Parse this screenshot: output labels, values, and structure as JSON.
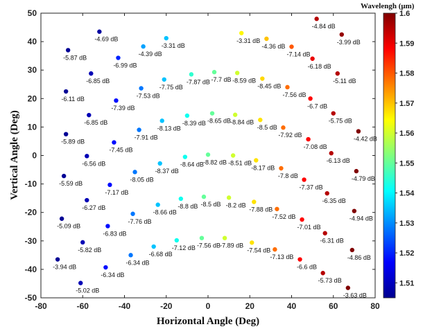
{
  "chart_data": {
    "type": "scatter",
    "xlabel": "Horizontal Angle (Deg)",
    "ylabel": "Vertical Angle (Deg)",
    "xlim": [
      -80,
      80
    ],
    "ylim": [
      -50,
      50
    ],
    "xticks": [
      "-80",
      "-60",
      "-40",
      "-20",
      "0",
      "20",
      "40",
      "60",
      "80"
    ],
    "yticks": [
      "50",
      "40",
      "30",
      "20",
      "10",
      "0",
      "-10",
      "-20",
      "-30",
      "-40",
      "-50"
    ],
    "grid": false,
    "colorbar": {
      "title": "Wavelengh (μm)",
      "range": [
        1.505,
        1.6
      ],
      "ticks": [
        "1.6",
        "1.59",
        "1.58",
        "1.57",
        "1.56",
        "1.55",
        "1.54",
        "1.53",
        "1.52",
        "1.51"
      ]
    },
    "points": [
      {
        "x": -52,
        "y": 43.5,
        "label": "-4.69 dB",
        "wl": 1.508
      },
      {
        "x": -20,
        "y": 41.2,
        "label": "-3.31 dB",
        "wl": 1.535
      },
      {
        "x": 16,
        "y": 43,
        "label": "-3.31 dB",
        "wl": 1.565
      },
      {
        "x": 52,
        "y": 48,
        "label": "-4.84 dB",
        "wl": 1.595
      },
      {
        "x": -67,
        "y": 37,
        "label": "-5.87 dB",
        "wl": 1.507
      },
      {
        "x": -31,
        "y": 38.3,
        "label": "-4.39 dB",
        "wl": 1.532
      },
      {
        "x": 28,
        "y": 41,
        "label": "-4.36 dB",
        "wl": 1.57
      },
      {
        "x": 64,
        "y": 42.5,
        "label": "-3.99 dB",
        "wl": 1.598
      },
      {
        "x": -43,
        "y": 34.3,
        "label": "-6.99 dB",
        "wl": 1.52
      },
      {
        "x": 40,
        "y": 38.2,
        "label": "-7.14 dB",
        "wl": 1.58
      },
      {
        "x": -56,
        "y": 28.8,
        "label": "-6.85 dB",
        "wl": 1.51
      },
      {
        "x": -21,
        "y": 26.7,
        "label": "-7.75 dB",
        "wl": 1.535
      },
      {
        "x": -8,
        "y": 28.5,
        "label": "-7.87 dB",
        "wl": 1.545
      },
      {
        "x": 3,
        "y": 29.3,
        "label": "-7.7 dB",
        "wl": 1.55
      },
      {
        "x": 14,
        "y": 29,
        "label": "-8.59 dB",
        "wl": 1.56
      },
      {
        "x": 26,
        "y": 27,
        "label": "-8.45 dB",
        "wl": 1.568
      },
      {
        "x": 50,
        "y": 34,
        "label": "-6.18 dB",
        "wl": 1.59
      },
      {
        "x": 62,
        "y": 28.8,
        "label": "-5.11 dB",
        "wl": 1.595
      },
      {
        "x": -68,
        "y": 22.5,
        "label": "-6.11 dB",
        "wl": 1.507
      },
      {
        "x": -44,
        "y": 19.3,
        "label": "-7.39 dB",
        "wl": 1.518
      },
      {
        "x": -32,
        "y": 23.6,
        "label": "-7.53 dB",
        "wl": 1.528
      },
      {
        "x": 38,
        "y": 24,
        "label": "-7.56 dB",
        "wl": 1.578
      },
      {
        "x": 49,
        "y": 20,
        "label": "-6.7 dB",
        "wl": 1.588
      },
      {
        "x": -57,
        "y": 14.2,
        "label": "-6.85 dB",
        "wl": 1.51
      },
      {
        "x": -22,
        "y": 12.2,
        "label": "-8.13 dB",
        "wl": 1.535
      },
      {
        "x": -10,
        "y": 14,
        "label": "-8.39 dB",
        "wl": 1.542
      },
      {
        "x": 2,
        "y": 14.8,
        "label": "-8.65 dB",
        "wl": 1.55
      },
      {
        "x": 13,
        "y": 14.3,
        "label": "-8.84 dB",
        "wl": 1.56
      },
      {
        "x": 25,
        "y": 12.5,
        "label": "-8.5 dB",
        "wl": 1.567
      },
      {
        "x": 60,
        "y": 14.8,
        "label": "-5.75 dB",
        "wl": 1.595
      },
      {
        "x": -68,
        "y": 7.5,
        "label": "-5.89 dB",
        "wl": 1.507
      },
      {
        "x": -45,
        "y": 4.6,
        "label": "-7.45 dB",
        "wl": 1.518
      },
      {
        "x": -33,
        "y": 9,
        "label": "-7.91 dB",
        "wl": 1.528
      },
      {
        "x": 36,
        "y": 9.8,
        "label": "-7.92 dB",
        "wl": 1.578
      },
      {
        "x": 48,
        "y": 5.7,
        "label": "-7.08 dB",
        "wl": 1.588
      },
      {
        "x": 72,
        "y": 8.5,
        "label": "-4.42 dB",
        "wl": 1.6
      },
      {
        "x": -58,
        "y": -0.2,
        "label": "-6.56 dB",
        "wl": 1.51
      },
      {
        "x": -23,
        "y": -2.8,
        "label": "-8.37 dB",
        "wl": 1.535
      },
      {
        "x": -11,
        "y": -0.5,
        "label": "-8.64 dB",
        "wl": 1.542
      },
      {
        "x": 0,
        "y": 0.3,
        "label": "-8.82 dB",
        "wl": 1.55
      },
      {
        "x": 12,
        "y": 0,
        "label": "-8.51 dB",
        "wl": 1.56
      },
      {
        "x": 23,
        "y": -1.7,
        "label": "-8.17 dB",
        "wl": 1.567
      },
      {
        "x": 59,
        "y": 0.8,
        "label": "-6.13 dB",
        "wl": 1.595
      },
      {
        "x": -69,
        "y": -7.2,
        "label": "-5.59 dB",
        "wl": 1.507
      },
      {
        "x": -47,
        "y": -10.3,
        "label": "-7.17 dB",
        "wl": 1.518
      },
      {
        "x": -35,
        "y": -5.8,
        "label": "-8.05 dB",
        "wl": 1.528
      },
      {
        "x": 35,
        "y": -4.5,
        "label": "-7.8 dB",
        "wl": 1.578
      },
      {
        "x": 71,
        "y": -5.5,
        "label": "-4.79 dB",
        "wl": 1.6
      },
      {
        "x": 46,
        "y": -8.5,
        "label": "-7.37 dB",
        "wl": 1.588
      },
      {
        "x": 57,
        "y": -13.3,
        "label": "-6.35 dB",
        "wl": 1.595
      },
      {
        "x": -58,
        "y": -15.7,
        "label": "-6.27 dB",
        "wl": 1.51
      },
      {
        "x": -24,
        "y": -17.3,
        "label": "-8.66 dB",
        "wl": 1.535
      },
      {
        "x": -13,
        "y": -15.2,
        "label": "-8.8 dB",
        "wl": 1.542
      },
      {
        "x": -2,
        "y": -14.5,
        "label": "-8.5 dB",
        "wl": 1.55
      },
      {
        "x": 10,
        "y": -14.8,
        "label": "-8.2 dB",
        "wl": 1.56
      },
      {
        "x": 22,
        "y": -16.3,
        "label": "-7.88 dB",
        "wl": 1.567
      },
      {
        "x": 70,
        "y": -19.5,
        "label": "-4.94 dB",
        "wl": 1.6
      },
      {
        "x": -70,
        "y": -22.2,
        "label": "-5.09 dB",
        "wl": 1.507
      },
      {
        "x": -36,
        "y": -20.5,
        "label": "-7.76 dB",
        "wl": 1.528
      },
      {
        "x": 33,
        "y": -18.8,
        "label": "-7.52 dB",
        "wl": 1.578
      },
      {
        "x": 45,
        "y": -22.5,
        "label": "-7.01 dB",
        "wl": 1.588
      },
      {
        "x": -48,
        "y": -24.8,
        "label": "-6.83 dB",
        "wl": 1.518
      },
      {
        "x": 56,
        "y": -27.3,
        "label": "-6.31 dB",
        "wl": 1.595
      },
      {
        "x": -60,
        "y": -30.5,
        "label": "-5.82 dB",
        "wl": 1.51
      },
      {
        "x": -26,
        "y": -32,
        "label": "-6.68 dB",
        "wl": 1.535
      },
      {
        "x": -15,
        "y": -29.8,
        "label": "-7.12 dB",
        "wl": 1.542
      },
      {
        "x": -3,
        "y": -29,
        "label": "-7.56 dB",
        "wl": 1.55
      },
      {
        "x": 8,
        "y": -29,
        "label": "-7.89 dB",
        "wl": 1.56
      },
      {
        "x": 21,
        "y": -30.6,
        "label": "-7.54 dB",
        "wl": 1.567
      },
      {
        "x": 69,
        "y": -33.2,
        "label": "-4.86 dB",
        "wl": 1.6
      },
      {
        "x": -72,
        "y": -36.5,
        "label": "-3.94 dB",
        "wl": 1.507
      },
      {
        "x": -37,
        "y": -35,
        "label": "-6.34 dB",
        "wl": 1.528
      },
      {
        "x": 32,
        "y": -33,
        "label": "-7.13 dB",
        "wl": 1.578
      },
      {
        "x": 44,
        "y": -36.5,
        "label": "-6.6 dB",
        "wl": 1.588
      },
      {
        "x": -49,
        "y": -39.3,
        "label": "-6.34 dB",
        "wl": 1.518
      },
      {
        "x": 55,
        "y": -41.3,
        "label": "-5.73 dB",
        "wl": 1.595
      },
      {
        "x": -61,
        "y": -44.8,
        "label": "-5.02 dB",
        "wl": 1.51
      },
      {
        "x": 67,
        "y": -46.5,
        "label": "-3.63 dB",
        "wl": 1.6
      }
    ]
  }
}
